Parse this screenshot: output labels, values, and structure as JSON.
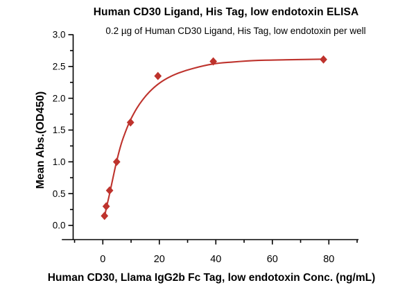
{
  "chart_data": {
    "type": "scatter",
    "title": "Human CD30 Ligand, His Tag, low endotoxin ELISA",
    "subtitle": "0.2 µg of Human CD30 Ligand, His Tag, low endotoxin per well",
    "xlabel": "Human CD30, Llama IgG2b Fc Tag, low endotoxin Conc. (ng/mL)",
    "ylabel": "Mean Abs.(OD450)",
    "grid": false,
    "legend": null,
    "axis_color": "#000000",
    "xlim": [
      -14.5,
      90.5
    ],
    "ylim": [
      -0.22,
      3.0
    ],
    "x_axis": {
      "ticks_major": [
        0,
        20,
        40,
        60,
        80
      ],
      "ticks_minor": [
        -10,
        10,
        30,
        50,
        70,
        90
      ],
      "tick_label_format": "integer"
    },
    "y_axis": {
      "ticks_major": [
        0.0,
        0.5,
        1.0,
        1.5,
        2.0,
        2.5,
        3.0
      ],
      "ticks_minor": [
        0.25,
        0.75,
        1.25,
        1.75,
        2.25,
        2.75
      ],
      "tick_label_format": "one_decimal"
    },
    "series": [
      {
        "name": "Human CD30 Ligand, His Tag, low endotoxin",
        "marker": "diamond",
        "color": "#BE332D",
        "points": [
          {
            "x": 0.6,
            "y": 0.15
          },
          {
            "x": 1.2,
            "y": 0.3
          },
          {
            "x": 2.4,
            "y": 0.55
          },
          {
            "x": 4.9,
            "y": 1.0
          },
          {
            "x": 9.8,
            "y": 1.62
          },
          {
            "x": 19.5,
            "y": 2.35
          },
          {
            "x": 39.1,
            "y": 2.58
          },
          {
            "x": 78.1,
            "y": 2.61
          }
        ]
      }
    ],
    "fit_curve": {
      "color": "#BE332D",
      "points": [
        [
          0.6,
          0.145
        ],
        [
          0.9,
          0.2
        ],
        [
          1.2,
          0.265
        ],
        [
          1.7,
          0.36
        ],
        [
          2.4,
          0.5
        ],
        [
          3.5,
          0.73
        ],
        [
          4.9,
          1.01
        ],
        [
          6.5,
          1.28
        ],
        [
          8.0,
          1.47
        ],
        [
          9.8,
          1.66
        ],
        [
          12.0,
          1.84
        ],
        [
          14.0,
          1.97
        ],
        [
          16.5,
          2.1
        ],
        [
          19.5,
          2.22
        ],
        [
          23.0,
          2.32
        ],
        [
          27.0,
          2.4
        ],
        [
          32.0,
          2.47
        ],
        [
          39.1,
          2.54
        ],
        [
          46.0,
          2.57
        ],
        [
          55.0,
          2.595
        ],
        [
          65.0,
          2.605
        ],
        [
          78.1,
          2.615
        ]
      ]
    }
  }
}
